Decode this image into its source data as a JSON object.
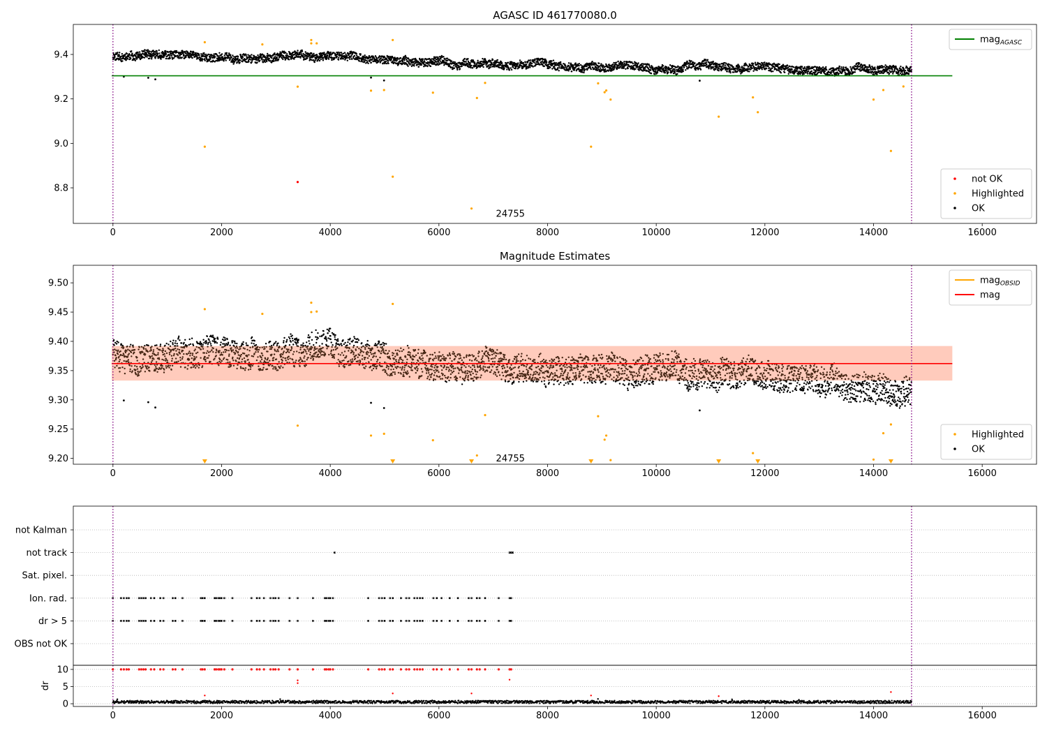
{
  "chart_data": [
    {
      "type": "scatter",
      "title": "AGASC ID 461770080.0",
      "xlim": [
        -730,
        17000
      ],
      "ylim": [
        8.64,
        9.535
      ],
      "xticks": [
        0,
        2000,
        4000,
        6000,
        8000,
        10000,
        12000,
        14000,
        16000
      ],
      "yticks": [
        8.8,
        9.0,
        9.2,
        9.4
      ],
      "vlines": [
        0,
        14700
      ],
      "annotation": {
        "text": "24755",
        "x": 7050,
        "y": 8.68
      },
      "hlines": [
        {
          "name": "mag_AGASC",
          "y": 9.304,
          "x_end": 15450,
          "color": "#008000"
        }
      ],
      "ok_series": {
        "name": "OK",
        "color": "#000000",
        "x_start": 0,
        "x_end": 14700,
        "trend": [
          [
            0,
            9.395
          ],
          [
            1500,
            9.385
          ],
          [
            3500,
            9.39
          ],
          [
            4100,
            9.39
          ],
          [
            5500,
            9.37
          ],
          [
            7000,
            9.36
          ],
          [
            9000,
            9.345
          ],
          [
            11000,
            9.345
          ],
          [
            12500,
            9.335
          ],
          [
            14700,
            9.325
          ]
        ],
        "spread": 0.03
      },
      "outliers_ok": [
        [
          200,
          9.3
        ],
        [
          650,
          9.295
        ],
        [
          780,
          9.288
        ],
        [
          4750,
          9.296
        ],
        [
          4990,
          9.283
        ],
        [
          10800,
          9.282
        ]
      ],
      "series": [
        {
          "name": "not OK",
          "color": "#ff0000",
          "points": [
            [
              3400,
              8.826
            ]
          ]
        },
        {
          "name": "Highlighted",
          "color": "#ffa500",
          "points": [
            [
              1690,
              9.455
            ],
            [
              1690,
              8.985
            ],
            [
              2750,
              9.445
            ],
            [
              3400,
              9.255
            ],
            [
              3650,
              9.465
            ],
            [
              3650,
              9.45
            ],
            [
              3750,
              9.45
            ],
            [
              4750,
              9.237
            ],
            [
              4990,
              9.24
            ],
            [
              5150,
              9.465
            ],
            [
              5150,
              8.85
            ],
            [
              5890,
              9.228
            ],
            [
              6600,
              8.707
            ],
            [
              6700,
              9.204
            ],
            [
              6850,
              9.272
            ],
            [
              8800,
              8.985
            ],
            [
              8930,
              9.27
            ],
            [
              9050,
              9.23
            ],
            [
              9080,
              9.238
            ],
            [
              9160,
              9.197
            ],
            [
              11150,
              9.12
            ],
            [
              11780,
              9.207
            ],
            [
              11870,
              9.14
            ],
            [
              14000,
              9.197
            ],
            [
              14180,
              9.24
            ],
            [
              14320,
              8.966
            ],
            [
              14550,
              9.256
            ]
          ]
        },
        {
          "name": "OK",
          "color": "#000000",
          "points": []
        }
      ],
      "legends": [
        {
          "position": "top-right",
          "entries": [
            {
              "label": "mag",
              "sub": "AGASC",
              "color": "#008000",
              "kind": "line"
            }
          ]
        },
        {
          "position": "bottom-right",
          "entries": [
            {
              "label": "not OK",
              "color": "#ff0000",
              "kind": "dot"
            },
            {
              "label": "Highlighted",
              "color": "#ffa500",
              "kind": "dot"
            },
            {
              "label": "OK",
              "color": "#000000",
              "kind": "dot"
            }
          ]
        }
      ]
    },
    {
      "type": "scatter",
      "title": "Magnitude Estimates",
      "xlim": [
        -730,
        17000
      ],
      "ylim": [
        9.19,
        9.53
      ],
      "xticks": [
        0,
        2000,
        4000,
        6000,
        8000,
        10000,
        12000,
        14000,
        16000
      ],
      "yticks": [
        9.2,
        9.25,
        9.3,
        9.35,
        9.4,
        9.45,
        9.5
      ],
      "vlines": [
        0,
        14700
      ],
      "annotation": {
        "text": "24755",
        "x": 7050,
        "y": 9.197
      },
      "band": {
        "y_low": 9.333,
        "y_high": 9.392,
        "x_end": 15450,
        "color": "#ffc0cb"
      },
      "hlines": [
        {
          "name": "mag",
          "y": 9.362,
          "x_end": 15450,
          "color": "#ff0000"
        }
      ],
      "ok_series": {
        "name": "OK",
        "color": "#000000",
        "x_start": 0,
        "x_end": 14700,
        "trend": [
          [
            0,
            9.385
          ],
          [
            1500,
            9.375
          ],
          [
            3500,
            9.38
          ],
          [
            4100,
            9.385
          ],
          [
            5500,
            9.37
          ],
          [
            7000,
            9.355
          ],
          [
            9000,
            9.35
          ],
          [
            11000,
            9.35
          ],
          [
            12500,
            9.34
          ],
          [
            13500,
            9.325
          ],
          [
            14700,
            9.32
          ]
        ],
        "spread": 0.04
      },
      "outliers_ok": [
        [
          200,
          9.299
        ],
        [
          650,
          9.296
        ],
        [
          780,
          9.287
        ],
        [
          4750,
          9.295
        ],
        [
          4990,
          9.286
        ],
        [
          10800,
          9.282
        ]
      ],
      "series": [
        {
          "name": "Highlighted",
          "color": "#ffa500",
          "points": [
            [
              1690,
              9.455
            ],
            [
              2750,
              9.447
            ],
            [
              3400,
              9.256
            ],
            [
              3650,
              9.466
            ],
            [
              3650,
              9.45
            ],
            [
              3750,
              9.451
            ],
            [
              4750,
              9.239
            ],
            [
              4990,
              9.242
            ],
            [
              5150,
              9.464
            ],
            [
              5890,
              9.231
            ],
            [
              6700,
              9.205
            ],
            [
              6850,
              9.274
            ],
            [
              8930,
              9.272
            ],
            [
              9050,
              9.232
            ],
            [
              9080,
              9.239
            ],
            [
              9160,
              9.197
            ],
            [
              11780,
              9.209
            ],
            [
              14000,
              9.198
            ],
            [
              14180,
              9.243
            ],
            [
              14320,
              9.258
            ]
          ]
        },
        {
          "name": "OK",
          "color": "#000000",
          "points": []
        }
      ],
      "below_markers": [
        1690,
        5150,
        6600,
        8800,
        11150,
        11870,
        14320
      ],
      "legends": [
        {
          "position": "top-right",
          "entries": [
            {
              "label": "mag",
              "sub": "OBSID",
              "color": "#ffa500",
              "kind": "line"
            },
            {
              "label": "mag",
              "sub": "",
              "color": "#ff0000",
              "kind": "line"
            }
          ]
        },
        {
          "position": "bottom-right",
          "entries": [
            {
              "label": "Highlighted",
              "color": "#ffa500",
              "kind": "dot"
            },
            {
              "label": "OK",
              "color": "#000000",
              "kind": "dot"
            }
          ]
        }
      ]
    },
    {
      "type": "scatter",
      "xlim": [
        -730,
        17000
      ],
      "xticks": [
        0,
        2000,
        4000,
        6000,
        8000,
        10000,
        12000,
        14000,
        16000
      ],
      "vlines": [
        0,
        14700
      ],
      "flag_rows": [
        "not Kalman",
        "not track",
        "Sat. pixel.",
        "Ion. rad.",
        "dr > 5",
        "OBS not OK"
      ],
      "flag_points": {
        "not track": [
          4080,
          7300,
          7320,
          7340,
          7360
        ],
        "Ion. rad.": [
          0,
          150,
          200,
          250,
          290,
          480,
          520,
          560,
          600,
          700,
          760,
          870,
          930,
          1100,
          1150,
          1280,
          1620,
          1650,
          1690,
          1870,
          1900,
          1940,
          1970,
          2000,
          2050,
          2200,
          2550,
          2650,
          2700,
          2780,
          2900,
          2950,
          2990,
          3050,
          3250,
          3400,
          3680,
          3900,
          3930,
          3970,
          4000,
          4050,
          4700,
          4900,
          4950,
          5000,
          5100,
          5150,
          5300,
          5400,
          5450,
          5550,
          5600,
          5650,
          5700,
          5900,
          5960,
          6050,
          6200,
          6350,
          6550,
          6600,
          6700,
          6750,
          6850,
          7100,
          7300,
          7330
        ],
        "dr > 5": [
          0,
          150,
          200,
          250,
          290,
          480,
          520,
          560,
          600,
          700,
          760,
          870,
          930,
          1100,
          1150,
          1280,
          1620,
          1650,
          1690,
          1870,
          1900,
          1940,
          1970,
          2000,
          2050,
          2200,
          2550,
          2650,
          2700,
          2780,
          2900,
          2950,
          2990,
          3050,
          3250,
          3400,
          3680,
          3900,
          3930,
          3970,
          4000,
          4050,
          4700,
          4900,
          4950,
          5000,
          5100,
          5150,
          5300,
          5400,
          5450,
          5550,
          5600,
          5650,
          5700,
          5900,
          5960,
          6050,
          6200,
          6350,
          6550,
          6600,
          6700,
          6750,
          6850,
          7100,
          7300,
          7330
        ]
      },
      "dr": {
        "ylabel": "dr",
        "ylim": [
          -0.8,
          11.2
        ],
        "yticks": [
          0,
          5,
          10
        ],
        "red_at_10": [
          0,
          150,
          200,
          250,
          290,
          480,
          520,
          560,
          600,
          700,
          760,
          870,
          930,
          1100,
          1150,
          1280,
          1620,
          1650,
          1690,
          1870,
          1900,
          1940,
          1970,
          2000,
          2050,
          2200,
          2550,
          2650,
          2700,
          2780,
          2900,
          2950,
          2990,
          3050,
          3250,
          3400,
          3680,
          3900,
          3930,
          3970,
          4000,
          4050,
          4700,
          4900,
          4950,
          5000,
          5100,
          5150,
          5300,
          5400,
          5450,
          5550,
          5600,
          5650,
          5700,
          5900,
          5960,
          6050,
          6200,
          6350,
          6550,
          6600,
          6700,
          6750,
          6850,
          7100,
          7300,
          7330
        ],
        "red_other": [
          [
            3400,
            6.8
          ],
          [
            3400,
            6.0
          ],
          [
            5150,
            3.0
          ],
          [
            6600,
            3.0
          ],
          [
            7300,
            7.0
          ],
          [
            14320,
            3.4
          ],
          [
            1690,
            2.4
          ],
          [
            8800,
            2.4
          ],
          [
            11150,
            2.2
          ]
        ],
        "baseline": {
          "x_start": 0,
          "x_end": 14700,
          "y_mean": 0.5,
          "spread": 0.4
        }
      }
    }
  ]
}
